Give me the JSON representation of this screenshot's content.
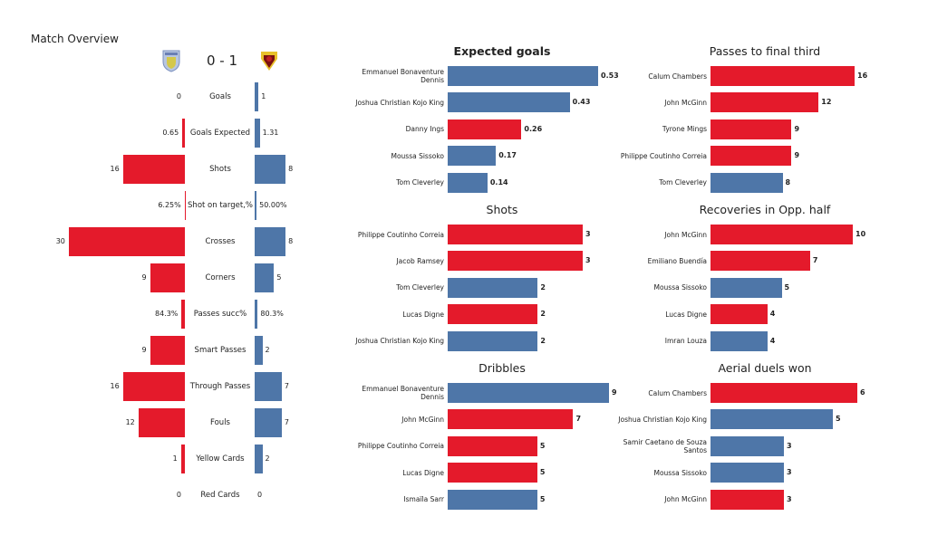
{
  "title": "Match Overview",
  "score": "0 - 1",
  "colors": {
    "home": "#e41a2b",
    "away": "#4e76a8"
  },
  "home_logo": "aston-villa-crest",
  "away_logo": "watford-crest",
  "overview": [
    {
      "label": "Goals",
      "home": "0",
      "away": "1",
      "home_v": 0,
      "away_v": 1
    },
    {
      "label": "Goals Expected",
      "home": "0.65",
      "away": "1.31",
      "home_v": 0.65,
      "away_v": 1.31
    },
    {
      "label": "Shots",
      "home": "16",
      "away": "8",
      "home_v": 16,
      "away_v": 8
    },
    {
      "label": "Shot on target,%",
      "home": "6.25%",
      "away": "50.00%",
      "home_v": 0.0625,
      "away_v": 0.5
    },
    {
      "label": "Crosses",
      "home": "30",
      "away": "8",
      "home_v": 30,
      "away_v": 8
    },
    {
      "label": "Corners",
      "home": "9",
      "away": "5",
      "home_v": 9,
      "away_v": 5
    },
    {
      "label": "Passes succ%",
      "home": "84.3%",
      "away": "80.3%",
      "home_v": 0.843,
      "away_v": 0.803
    },
    {
      "label": "Smart Passes",
      "home": "9",
      "away": "2",
      "home_v": 9,
      "away_v": 2
    },
    {
      "label": "Through Passes",
      "home": "16",
      "away": "7",
      "home_v": 16,
      "away_v": 7
    },
    {
      "label": "Fouls",
      "home": "12",
      "away": "7",
      "home_v": 12,
      "away_v": 7
    },
    {
      "label": "Yellow Cards",
      "home": "1",
      "away": "2",
      "home_v": 1,
      "away_v": 2
    },
    {
      "label": "Red Cards",
      "home": "0",
      "away": "0",
      "home_v": 0,
      "away_v": 0
    }
  ],
  "chart_data": [
    {
      "type": "bar",
      "title": "Expected goals",
      "bold_title": true,
      "xlim": [
        0,
        0.53
      ],
      "categories": [
        "Emmanuel Bonaventure Dennis",
        "Joshua Christian Kojo King",
        "Danny Ings",
        "Moussa Sissoko",
        "Tom Cleverley"
      ],
      "values": [
        0.53,
        0.43,
        0.26,
        0.17,
        0.14
      ],
      "labels": [
        "0.53",
        "0.43",
        "0.26",
        "0.17",
        "0.14"
      ],
      "teams": [
        "away",
        "away",
        "home",
        "away",
        "away"
      ]
    },
    {
      "type": "bar",
      "title": "Passes to final third",
      "xlim": [
        0,
        16
      ],
      "categories": [
        "Calum Chambers",
        "John McGinn",
        "Tyrone Mings",
        "Philippe Coutinho Correia",
        "Tom Cleverley"
      ],
      "values": [
        16,
        12,
        9,
        9,
        8
      ],
      "labels": [
        "16",
        "12",
        "9",
        "9",
        "8"
      ],
      "teams": [
        "home",
        "home",
        "home",
        "home",
        "away"
      ]
    },
    {
      "type": "bar",
      "title": "Shots",
      "xlim": [
        0,
        3
      ],
      "categories": [
        "Philippe Coutinho Correia",
        "Jacob Ramsey",
        "Tom Cleverley",
        "Lucas Digne",
        "Joshua Christian Kojo King"
      ],
      "values": [
        3,
        3,
        2,
        2,
        2
      ],
      "labels": [
        "3",
        "3",
        "2",
        "2",
        "2"
      ],
      "teams": [
        "home",
        "home",
        "away",
        "home",
        "away"
      ]
    },
    {
      "type": "bar",
      "title": "Recoveries in Opp. half",
      "xlim": [
        0,
        10
      ],
      "categories": [
        "John McGinn",
        "Emiliano Buendía",
        "Moussa Sissoko",
        "Lucas Digne",
        "Imran Louza"
      ],
      "values": [
        10,
        7,
        5,
        4,
        4
      ],
      "labels": [
        "10",
        "7",
        "5",
        "4",
        "4"
      ],
      "teams": [
        "home",
        "home",
        "away",
        "home",
        "away"
      ]
    },
    {
      "type": "bar",
      "title": "Dribbles",
      "xlim": [
        0,
        9
      ],
      "categories": [
        "Emmanuel Bonaventure Dennis",
        "John McGinn",
        "Philippe Coutinho Correia",
        "Lucas Digne",
        "Ismaïla Sarr"
      ],
      "values": [
        9,
        7,
        5,
        5,
        5
      ],
      "labels": [
        "9",
        "7",
        "5",
        "5",
        "5"
      ],
      "teams": [
        "away",
        "home",
        "home",
        "home",
        "away"
      ]
    },
    {
      "type": "bar",
      "title": "Aerial duels won",
      "xlim": [
        0,
        6
      ],
      "categories": [
        "Calum Chambers",
        "Joshua Christian Kojo King",
        "Samir Caetano de Souza Santos",
        "Moussa Sissoko",
        "John McGinn"
      ],
      "values": [
        6,
        5,
        3,
        3,
        3
      ],
      "labels": [
        "6",
        "5",
        "3",
        "3",
        "3"
      ],
      "teams": [
        "home",
        "away",
        "away",
        "away",
        "home"
      ]
    }
  ]
}
